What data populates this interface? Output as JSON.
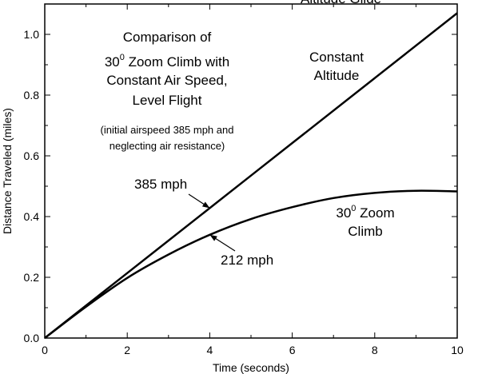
{
  "chart_data": {
    "type": "line",
    "xlabel": "Time (seconds)",
    "ylabel": "Distance Traveled (miles)",
    "xlim": [
      0,
      10
    ],
    "ylim": [
      0,
      1.1
    ],
    "x_ticks": [
      "0",
      "2",
      "4",
      "6",
      "8",
      "10"
    ],
    "y_ticks": [
      "0.0",
      "0.2",
      "0.4",
      "0.6",
      "0.8",
      "1.0"
    ],
    "grid": false,
    "series": [
      {
        "name": "Constant Altitude",
        "color": "#000000",
        "x": [
          0,
          2,
          4,
          6,
          8,
          10
        ],
        "y": [
          0,
          0.214,
          0.428,
          0.642,
          0.856,
          1.07
        ]
      },
      {
        "name": "30° Zoom Climb",
        "color": "#000000",
        "x": [
          0,
          1,
          2,
          3,
          4,
          5,
          6,
          7,
          8,
          9,
          10
        ],
        "y": [
          0,
          0.103,
          0.198,
          0.275,
          0.34,
          0.392,
          0.431,
          0.461,
          0.478,
          0.485,
          0.483
        ]
      }
    ],
    "top_clip_text": "Altitude  Glide",
    "title": {
      "line1": "Comparison of",
      "line2_num": "30",
      "line2_sup": "0",
      "line2_rest": " Zoom Climb with",
      "line3": "Constant Air Speed,",
      "line4": "Level Flight"
    },
    "note": {
      "line1": "(initial airspeed 385 mph and",
      "line2": "neglecting air resistance)"
    },
    "annotations": {
      "constant_altitude": {
        "line1": "Constant",
        "line2": "Altitude"
      },
      "zoom_climb": {
        "line1_num": "30",
        "line1_sup": "0",
        "line1_rest": " Zoom",
        "line2": "Climb"
      },
      "speed_385": {
        "text": "385 mph",
        "x": 4,
        "y": 0.428
      },
      "speed_212": {
        "text": "212 mph",
        "x": 4,
        "y": 0.34
      }
    }
  }
}
